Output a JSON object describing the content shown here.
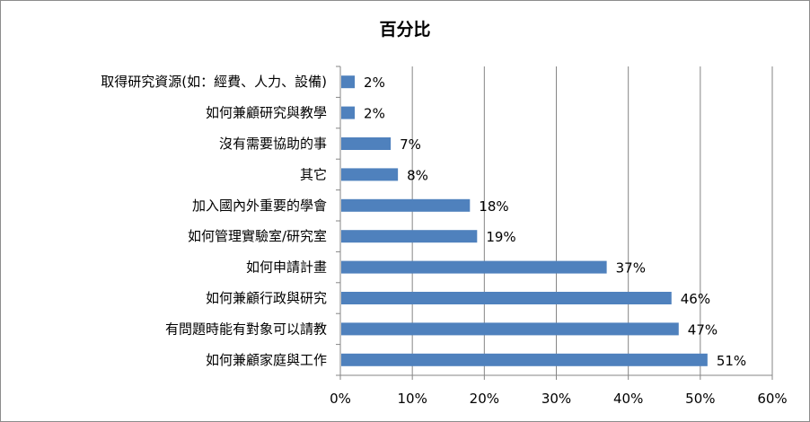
{
  "chart_data": {
    "type": "bar",
    "orientation": "horizontal",
    "title": "百分比",
    "categories": [
      "取得研究資源(如：經費、人力、設備)",
      "如何兼顧研究與教學",
      "沒有需要協助的事",
      "其它",
      "加入國內外重要的學會",
      "如何管理實驗室/研究室",
      "如何申請計畫",
      "如何兼顧行政與研究",
      "有問題時能有對象可以請教",
      "如何兼顧家庭與工作"
    ],
    "values": [
      2,
      2,
      7,
      8,
      18,
      19,
      37,
      46,
      47,
      51
    ],
    "value_labels": [
      "2%",
      "2%",
      "7%",
      "8%",
      "18%",
      "19%",
      "37%",
      "46%",
      "47%",
      "51%"
    ],
    "xlim": [
      0,
      60
    ],
    "xticks": [
      0,
      10,
      20,
      30,
      40,
      50,
      60
    ],
    "xtick_labels": [
      "0%",
      "10%",
      "20%",
      "30%",
      "40%",
      "50%",
      "60%"
    ],
    "grid": "vertical",
    "legend": "none",
    "bar_color": "#4f81bd",
    "grid_color": "#868686"
  }
}
